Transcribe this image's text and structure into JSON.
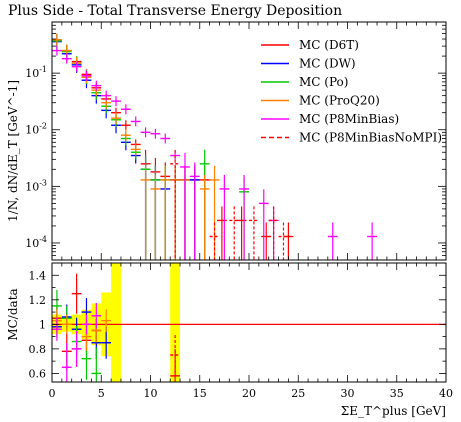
{
  "title": "Plus Side - Total Transverse Energy Deposition",
  "chart_data": [
    {
      "panel": "main",
      "type": "scatter",
      "ylabel": "1/N, dN/dE_T [GeV^-1]",
      "yscale": "log",
      "ylim": [
        5e-05,
        0.8
      ],
      "xlim": [
        0,
        40
      ],
      "y_tick_labels": [
        "10^-1",
        "10^-2",
        "10^-3",
        "10^-4"
      ],
      "legend_position": "top-right",
      "series": [
        {
          "name": "MC (D6T)",
          "color": "#ff0000",
          "dashed": false,
          "points": [
            [
              0.5,
              0.38
            ],
            [
              1.5,
              0.25
            ],
            [
              2.5,
              0.16
            ],
            [
              3.5,
              0.095
            ],
            [
              4.5,
              0.055
            ],
            [
              5.5,
              0.035
            ],
            [
              6.5,
              0.02
            ],
            [
              7.5,
              0.012
            ],
            [
              8.5,
              0.0055
            ],
            [
              9.5,
              0.0025
            ],
            [
              10.5,
              0.0018
            ],
            [
              11.5,
              0.0015
            ],
            [
              12.5,
              0.0013
            ],
            [
              13.5,
              0.0013
            ],
            [
              14.5,
              0.0013
            ],
            [
              15.5,
              0.0013
            ],
            [
              17.25,
              0.00025
            ],
            [
              19.25,
              0.00025
            ],
            [
              21.75,
              0.00013
            ],
            [
              24,
              0.00013
            ]
          ]
        },
        {
          "name": "MC (DW)",
          "color": "#0000ff",
          "dashed": false,
          "points": [
            [
              0.5,
              0.36
            ],
            [
              1.5,
              0.22
            ],
            [
              2.5,
              0.14
            ],
            [
              3.5,
              0.075
            ],
            [
              4.5,
              0.04
            ],
            [
              5.5,
              0.022
            ],
            [
              6.5,
              0.012
            ],
            [
              7.5,
              0.006
            ],
            [
              8.5,
              0.0035
            ],
            [
              9.5,
              0.002
            ],
            [
              10.5,
              0.0013
            ],
            [
              11.5,
              0.0009
            ],
            [
              12.5,
              0.0013
            ],
            [
              13.5,
              0.0013
            ],
            [
              14.5,
              0.0013
            ]
          ]
        },
        {
          "name": "MC (Po)",
          "color": "#00cc00",
          "dashed": false,
          "points": [
            [
              0.5,
              0.37
            ],
            [
              1.5,
              0.24
            ],
            [
              2.5,
              0.15
            ],
            [
              3.5,
              0.085
            ],
            [
              4.5,
              0.045
            ],
            [
              5.5,
              0.026
            ],
            [
              6.5,
              0.015
            ],
            [
              7.5,
              0.007
            ],
            [
              8.5,
              0.004
            ],
            [
              9.5,
              0.002
            ],
            [
              10.5,
              0.0013
            ],
            [
              11.5,
              0.0013
            ],
            [
              15.5,
              0.0025
            ],
            [
              19.5,
              0.0008
            ]
          ]
        },
        {
          "name": "MC (ProQ20)",
          "color": "#ff8000",
          "dashed": false,
          "points": [
            [
              0.5,
              0.39
            ],
            [
              1.5,
              0.25
            ],
            [
              2.5,
              0.15
            ],
            [
              3.5,
              0.085
            ],
            [
              4.5,
              0.05
            ],
            [
              5.5,
              0.03
            ],
            [
              6.5,
              0.016
            ],
            [
              7.5,
              0.008
            ],
            [
              8.5,
              0.0045
            ],
            [
              9.5,
              0.0013
            ],
            [
              10.5,
              0.0009
            ],
            [
              11.5,
              0.0013
            ],
            [
              12.5,
              0.0013
            ],
            [
              13.5,
              0.0013
            ],
            [
              15.5,
              0.0009
            ],
            [
              16.5,
              0.0013
            ]
          ]
        },
        {
          "name": "MC (P8MinBias)",
          "color": "#ff00ff",
          "dashed": false,
          "points": [
            [
              0.5,
              0.25
            ],
            [
              1.5,
              0.18
            ],
            [
              2.5,
              0.13
            ],
            [
              3.5,
              0.09
            ],
            [
              4.5,
              0.06
            ],
            [
              5.5,
              0.04
            ],
            [
              6.5,
              0.032
            ],
            [
              7.5,
              0.023
            ],
            [
              8.5,
              0.014
            ],
            [
              9.5,
              0.009
            ],
            [
              10.5,
              0.0085
            ],
            [
              11.5,
              0.007
            ],
            [
              12.5,
              0.0035
            ],
            [
              13.5,
              0.0022
            ],
            [
              14.5,
              0.0015
            ],
            [
              17.5,
              0.0009
            ],
            [
              19.5,
              0.0009
            ],
            [
              21.5,
              0.0005
            ],
            [
              22.5,
              0.00025
            ],
            [
              28.5,
              0.00013
            ],
            [
              32.5,
              0.00013
            ]
          ]
        },
        {
          "name": "MC (P8MinBiasNoMPI)",
          "color": "#ff0000",
          "dashed": true,
          "points": [
            [
              12.5,
              0.0025
            ],
            [
              16.5,
              0.00013
            ],
            [
              18.5,
              0.00025
            ],
            [
              20.5,
              0.00025
            ],
            [
              22.5,
              0.00025
            ],
            [
              23.5,
              0.00013
            ]
          ]
        }
      ]
    },
    {
      "panel": "ratio",
      "type": "scatter",
      "ylabel": "MC/data",
      "xlabel": "ΣE_T^plus [GeV]",
      "ylim": [
        0.53,
        1.5
      ],
      "xlim": [
        0,
        40
      ],
      "y_ticks": [
        0.6,
        0.8,
        1,
        1.2,
        1.4
      ],
      "x_ticks": [
        0,
        5,
        10,
        15,
        20,
        25,
        30,
        35,
        40
      ],
      "reference_line": 1,
      "data_uncertainty_band": {
        "color": "#ffff00",
        "bins": [
          [
            0,
            1,
            0.92,
            1.08
          ],
          [
            1,
            2,
            0.94,
            1.06
          ],
          [
            2,
            3,
            0.92,
            1.08
          ],
          [
            3,
            4,
            0.88,
            1.12
          ],
          [
            4,
            5,
            0.83,
            1.17
          ],
          [
            5,
            6,
            0.74,
            1.26
          ],
          [
            6,
            7,
            0.53,
            1.5
          ],
          [
            12,
            13,
            0.53,
            1.5
          ]
        ]
      },
      "series": [
        {
          "name": "MC (D6T)",
          "color": "#ff0000",
          "points": [
            [
              0.5,
              1.05
            ],
            [
              1.5,
              0.78
            ],
            [
              2.5,
              1.25
            ],
            [
              3.5,
              0.87
            ],
            [
              4.5,
              0.95
            ],
            [
              12.5,
              0.58
            ]
          ]
        },
        {
          "name": "MC (DW)",
          "color": "#0000ff",
          "points": [
            [
              0.5,
              0.98
            ],
            [
              1.5,
              1.06
            ],
            [
              2.5,
              0.96
            ],
            [
              3.5,
              1.1
            ],
            [
              4.5,
              0.85
            ],
            [
              5.5,
              0.85
            ]
          ]
        },
        {
          "name": "MC (Po)",
          "color": "#00cc00",
          "points": [
            [
              0.5,
              1.15
            ],
            [
              1.5,
              1.05
            ],
            [
              2.5,
              0.86
            ],
            [
              3.5,
              0.72
            ],
            [
              4.5,
              0.6
            ]
          ]
        },
        {
          "name": "MC (ProQ20)",
          "color": "#ff8000",
          "points": [
            [
              0.5,
              1.03
            ],
            [
              1.5,
              1.0
            ],
            [
              2.5,
              0.8
            ],
            [
              3.5,
              0.9
            ],
            [
              4.5,
              0.95
            ],
            [
              5.5,
              1.03
            ]
          ]
        },
        {
          "name": "MC (P8MinBias)",
          "color": "#ff00ff",
          "points": [
            [
              0.5,
              0.96
            ],
            [
              1.5,
              0.65
            ],
            [
              2.5,
              0.8
            ],
            [
              3.5,
              1.0
            ],
            [
              4.5,
              1.07
            ]
          ]
        },
        {
          "name": "MC (P8MinBiasNoMPI)",
          "color": "#ff0000",
          "dashed": true,
          "points": [
            [
              12.5,
              0.75
            ]
          ]
        }
      ]
    }
  ]
}
